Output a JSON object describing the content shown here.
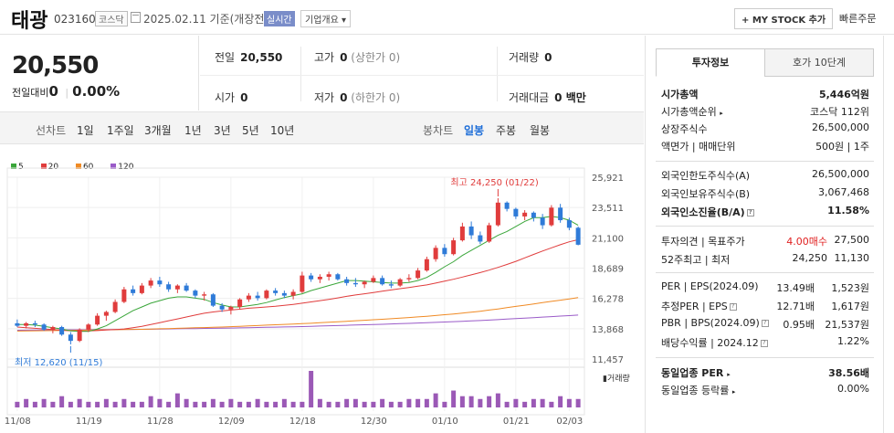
{
  "header": {
    "name": "태광",
    "code": "023160",
    "market": "코스닥",
    "date": "2025.02.11",
    "date_suffix": "기준(개장전)",
    "live": "실시간",
    "overview": "기업개요",
    "mystock": "+ MY STOCK 추가",
    "quick_order": "빠른주문"
  },
  "price": {
    "current": "20,550",
    "change_label": "전일대비",
    "change_value": "0",
    "change_pct": "0.00%"
  },
  "stats": {
    "prev_label": "전일",
    "prev_value": "20,550",
    "high_label": "고가",
    "high_value": "0",
    "high_sub": "(상한가 0)",
    "volume_label": "거래량",
    "volume_value": "0",
    "open_label": "시가",
    "open_value": "0",
    "low_label": "저가",
    "low_value": "0",
    "low_sub": "(하한가 0)",
    "amount_label": "거래대금",
    "amount_value": "0 백만"
  },
  "chart_toolbar": {
    "line_label": "선차트",
    "periods": [
      "1일",
      "1주일",
      "3개월",
      "1년",
      "3년",
      "5년",
      "10년"
    ],
    "candle_label": "봉차트",
    "candles": [
      "일봉",
      "주봉",
      "월봉"
    ],
    "active_candle": "일봉"
  },
  "legend": [
    {
      "label": "5",
      "color": "#3aa63a"
    },
    {
      "label": "20",
      "color": "#e03c3c"
    },
    {
      "label": "60",
      "color": "#f08a24"
    },
    {
      "label": "120",
      "color": "#9a5bc8"
    }
  ],
  "chart_data": {
    "type": "candlestick",
    "y_ticks": [
      "25,921",
      "23,511",
      "21,100",
      "18,689",
      "16,278",
      "13,868",
      "11,457"
    ],
    "ylim": [
      11457,
      25921
    ],
    "x_ticks": [
      "11/08",
      "11/19",
      "11/28",
      "12/09",
      "12/18",
      "12/30",
      "01/10",
      "01/21",
      "02/03"
    ],
    "annotation_high": "최고 24,250 (01/22)",
    "annotation_low": "최저 12,620 (11/15)",
    "volume_label": "거래량",
    "candles": [
      [
        14300,
        14600,
        14000,
        14100
      ],
      [
        14100,
        14400,
        13900,
        14300
      ],
      [
        14300,
        14500,
        14000,
        14200
      ],
      [
        14200,
        14300,
        13700,
        13800
      ],
      [
        13800,
        14100,
        13500,
        14000
      ],
      [
        14000,
        14100,
        13300,
        13400
      ],
      [
        13400,
        13600,
        12620,
        12900
      ],
      [
        12900,
        13900,
        12800,
        13800
      ],
      [
        13800,
        14300,
        13600,
        14200
      ],
      [
        14200,
        15100,
        14100,
        14900
      ],
      [
        14900,
        15300,
        14500,
        15200
      ],
      [
        15200,
        16200,
        15100,
        16000
      ],
      [
        16000,
        17200,
        15900,
        17000
      ],
      [
        17000,
        17300,
        16500,
        16700
      ],
      [
        16700,
        17500,
        16600,
        17300
      ],
      [
        17300,
        17900,
        17100,
        17700
      ],
      [
        17700,
        18000,
        17200,
        17400
      ],
      [
        17400,
        17600,
        16800,
        17000
      ],
      [
        17000,
        17400,
        16700,
        17300
      ],
      [
        17300,
        17500,
        16800,
        16900
      ],
      [
        16900,
        17000,
        16300,
        16500
      ],
      [
        16500,
        16800,
        16100,
        16600
      ],
      [
        16600,
        16700,
        15600,
        15700
      ],
      [
        15700,
        15900,
        15200,
        15400
      ],
      [
        15400,
        15700,
        15000,
        15600
      ],
      [
        15600,
        16300,
        15400,
        16200
      ],
      [
        16200,
        16700,
        16000,
        16500
      ],
      [
        16500,
        16800,
        16100,
        16300
      ],
      [
        16300,
        17000,
        16200,
        16900
      ],
      [
        16900,
        17100,
        16500,
        16700
      ],
      [
        16700,
        16900,
        16300,
        16500
      ],
      [
        16500,
        17000,
        16200,
        16800
      ],
      [
        16800,
        18400,
        16700,
        18100
      ],
      [
        18100,
        18300,
        17600,
        17800
      ],
      [
        17800,
        18200,
        17500,
        18000
      ],
      [
        18000,
        18400,
        17700,
        18200
      ],
      [
        18200,
        18300,
        17700,
        17800
      ],
      [
        17800,
        18000,
        17300,
        17500
      ],
      [
        17500,
        17900,
        17200,
        17400
      ],
      [
        17400,
        17700,
        17100,
        17600
      ],
      [
        17600,
        18100,
        17500,
        17900
      ],
      [
        17900,
        18100,
        17300,
        17400
      ],
      [
        17400,
        17700,
        17100,
        17300
      ],
      [
        17300,
        17900,
        17200,
        17800
      ],
      [
        17800,
        18200,
        17600,
        17900
      ],
      [
        17900,
        18700,
        17800,
        18500
      ],
      [
        18500,
        19600,
        18400,
        19400
      ],
      [
        19400,
        20500,
        19200,
        20300
      ],
      [
        20300,
        20600,
        19600,
        19800
      ],
      [
        19800,
        21100,
        19700,
        20900
      ],
      [
        20900,
        22300,
        20800,
        22000
      ],
      [
        22000,
        22400,
        21000,
        21300
      ],
      [
        21300,
        21600,
        20600,
        20800
      ],
      [
        20800,
        22300,
        20700,
        22100
      ],
      [
        22100,
        24250,
        22000,
        23900
      ],
      [
        23900,
        24000,
        23200,
        23400
      ],
      [
        23400,
        23500,
        22600,
        22800
      ],
      [
        22800,
        23300,
        22500,
        23100
      ],
      [
        23100,
        23200,
        22400,
        22700
      ],
      [
        22700,
        23000,
        21800,
        22100
      ],
      [
        22100,
        23700,
        22000,
        23500
      ],
      [
        23500,
        23800,
        22300,
        22500
      ],
      [
        22500,
        22700,
        21700,
        21900
      ],
      [
        21900,
        22000,
        20500,
        20550
      ]
    ],
    "volumes": [
      2,
      3,
      2,
      3,
      2,
      4,
      2,
      3,
      2,
      2,
      3,
      2,
      3,
      2,
      2,
      4,
      3,
      2,
      5,
      3,
      2,
      2,
      3,
      2,
      3,
      2,
      2,
      3,
      2,
      2,
      3,
      2,
      2,
      13,
      3,
      2,
      2,
      3,
      3,
      2,
      2,
      3,
      2,
      2,
      3,
      3,
      3,
      5,
      2,
      6,
      4,
      4,
      3,
      4,
      5,
      2,
      3,
      2,
      3,
      3,
      2,
      4,
      3,
      3
    ],
    "ma5": [
      14200,
      14200,
      14150,
      14050,
      13950,
      13850,
      13700,
      13650,
      13650,
      13850,
      14100,
      14500,
      14900,
      15300,
      15600,
      15900,
      16100,
      16300,
      16400,
      16400,
      16300,
      16200,
      15950,
      15750,
      15600,
      15600,
      15700,
      15800,
      15950,
      16150,
      16350,
      16500,
      16650,
      16900,
      17100,
      17300,
      17500,
      17700,
      17700,
      17650,
      17600,
      17550,
      17500,
      17500,
      17550,
      17700,
      17950,
      18350,
      18800,
      19200,
      19700,
      20100,
      20500,
      20900,
      21300,
      21600,
      22000,
      22400,
      22700,
      22700,
      22800,
      22700,
      22500,
      22100
    ],
    "ma20": [
      14000,
      13950,
      13900,
      13850,
      13800,
      13750,
      13700,
      13680,
      13690,
      13720,
      13760,
      13800,
      13850,
      13950,
      14050,
      14200,
      14350,
      14500,
      14650,
      14800,
      14950,
      15100,
      15200,
      15280,
      15350,
      15420,
      15500,
      15550,
      15600,
      15650,
      15720,
      15800,
      15900,
      16000,
      16100,
      16200,
      16320,
      16440,
      16550,
      16650,
      16750,
      16850,
      16950,
      17050,
      17150,
      17250,
      17350,
      17500,
      17650,
      17800,
      17980,
      18150,
      18330,
      18530,
      18750,
      18980,
      19230,
      19500,
      19780,
      20050,
      20300,
      20550,
      20780,
      20950
    ],
    "ma60": [
      13680,
      13690,
      13700,
      13710,
      13720,
      13730,
      13740,
      13750,
      13760,
      13770,
      13780,
      13790,
      13800,
      13810,
      13820,
      13840,
      13860,
      13880,
      13900,
      13920,
      13940,
      13960,
      13980,
      14000,
      14030,
      14060,
      14090,
      14120,
      14150,
      14180,
      14210,
      14240,
      14270,
      14300,
      14340,
      14380,
      14420,
      14460,
      14500,
      14540,
      14580,
      14620,
      14660,
      14710,
      14760,
      14810,
      14860,
      14920,
      14980,
      15040,
      15110,
      15180,
      15260,
      15350,
      15440,
      15540,
      15640,
      15740,
      15840,
      15940,
      16040,
      16140,
      16240,
      16340
    ],
    "ma120": [
      13750,
      13755,
      13760,
      13765,
      13770,
      13775,
      13780,
      13785,
      13790,
      13795,
      13800,
      13805,
      13810,
      13815,
      13820,
      13830,
      13840,
      13850,
      13860,
      13870,
      13880,
      13890,
      13900,
      13910,
      13920,
      13935,
      13950,
      13965,
      13980,
      13995,
      14010,
      14025,
      14040,
      14060,
      14080,
      14100,
      14120,
      14140,
      14160,
      14180,
      14200,
      14220,
      14245,
      14270,
      14295,
      14320,
      14345,
      14370,
      14400,
      14430,
      14460,
      14490,
      14520,
      14550,
      14590,
      14630,
      14670,
      14710,
      14750,
      14790,
      14830,
      14870,
      14910,
      14950
    ]
  },
  "invest": {
    "tab_info": "투자정보",
    "tab_hoga": "호가 10단계",
    "mcap_label": "시가총액",
    "mcap_value": "5,446억원",
    "rank_label": "시가총액순위",
    "rank_value": "코스닥 112위",
    "shares_label": "상장주식수",
    "shares_value": "26,500,000",
    "par_label": "액면가 | 매매단위",
    "par_value": "500원 | 1주",
    "foreign_limit_label": "외국인한도주식수(A)",
    "foreign_limit_value": "26,500,000",
    "foreign_hold_label": "외국인보유주식수(B)",
    "foreign_hold_value": "3,067,468",
    "foreign_ratio_label": "외국인소진율(B/A)",
    "foreign_ratio_value": "11.58%",
    "opinion_label": "투자의견 | 목표주가",
    "opinion_value": "4.00매수",
    "target_value": "27,500",
    "w52_label": "52주최고 | 최저",
    "w52_high": "24,250",
    "w52_low": "11,130",
    "per_label": "PER | EPS(2024.09)",
    "per_value": "13.49배",
    "eps_value": "1,523원",
    "eper_label": "추정PER | EPS",
    "eper_value": "12.71배",
    "eeps_value": "1,617원",
    "pbr_label": "PBR | BPS(2024.09)",
    "pbr_value": "0.95배",
    "bps_value": "21,537원",
    "div_label": "배당수익률 | 2024.12",
    "div_value": "1.22%",
    "sector_per_label": "동일업종 PER",
    "sector_per_value": "38.56배",
    "sector_chg_label": "동일업종 등락률",
    "sector_chg_value": "0.00%"
  }
}
